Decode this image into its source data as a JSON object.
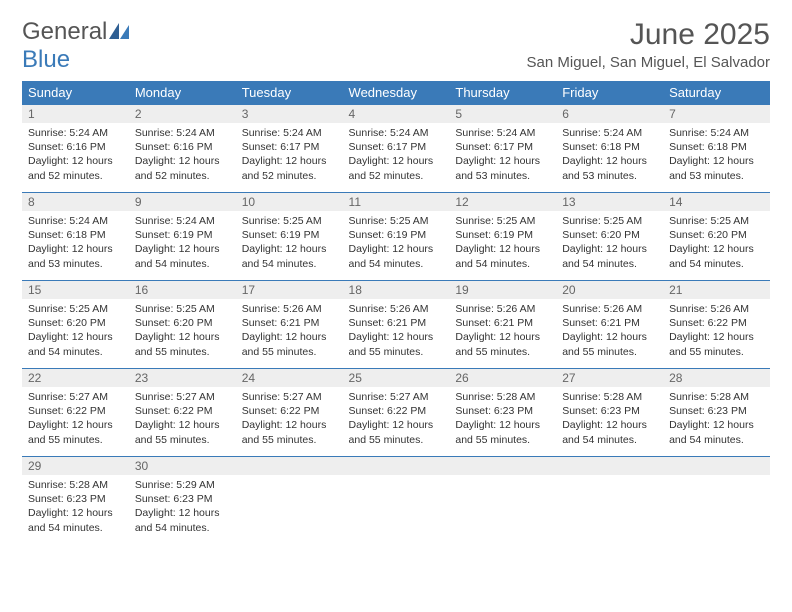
{
  "logo": {
    "general": "General",
    "blue": "Blue"
  },
  "title": "June 2025",
  "location": "San Miguel, San Miguel, El Salvador",
  "colors": {
    "header_bg": "#3a7ab8",
    "header_fg": "#ffffff",
    "daynum_bg": "#eeeeee",
    "daynum_fg": "#666666",
    "row_divider": "#3a7ab8",
    "text": "#333333",
    "logo_gray": "#555555",
    "logo_blue": "#3a7ab8"
  },
  "weekdays": [
    "Sunday",
    "Monday",
    "Tuesday",
    "Wednesday",
    "Thursday",
    "Friday",
    "Saturday"
  ],
  "days": [
    {
      "n": "1",
      "sunrise": "Sunrise: 5:24 AM",
      "sunset": "Sunset: 6:16 PM",
      "daylight": "Daylight: 12 hours and 52 minutes."
    },
    {
      "n": "2",
      "sunrise": "Sunrise: 5:24 AM",
      "sunset": "Sunset: 6:16 PM",
      "daylight": "Daylight: 12 hours and 52 minutes."
    },
    {
      "n": "3",
      "sunrise": "Sunrise: 5:24 AM",
      "sunset": "Sunset: 6:17 PM",
      "daylight": "Daylight: 12 hours and 52 minutes."
    },
    {
      "n": "4",
      "sunrise": "Sunrise: 5:24 AM",
      "sunset": "Sunset: 6:17 PM",
      "daylight": "Daylight: 12 hours and 52 minutes."
    },
    {
      "n": "5",
      "sunrise": "Sunrise: 5:24 AM",
      "sunset": "Sunset: 6:17 PM",
      "daylight": "Daylight: 12 hours and 53 minutes."
    },
    {
      "n": "6",
      "sunrise": "Sunrise: 5:24 AM",
      "sunset": "Sunset: 6:18 PM",
      "daylight": "Daylight: 12 hours and 53 minutes."
    },
    {
      "n": "7",
      "sunrise": "Sunrise: 5:24 AM",
      "sunset": "Sunset: 6:18 PM",
      "daylight": "Daylight: 12 hours and 53 minutes."
    },
    {
      "n": "8",
      "sunrise": "Sunrise: 5:24 AM",
      "sunset": "Sunset: 6:18 PM",
      "daylight": "Daylight: 12 hours and 53 minutes."
    },
    {
      "n": "9",
      "sunrise": "Sunrise: 5:24 AM",
      "sunset": "Sunset: 6:19 PM",
      "daylight": "Daylight: 12 hours and 54 minutes."
    },
    {
      "n": "10",
      "sunrise": "Sunrise: 5:25 AM",
      "sunset": "Sunset: 6:19 PM",
      "daylight": "Daylight: 12 hours and 54 minutes."
    },
    {
      "n": "11",
      "sunrise": "Sunrise: 5:25 AM",
      "sunset": "Sunset: 6:19 PM",
      "daylight": "Daylight: 12 hours and 54 minutes."
    },
    {
      "n": "12",
      "sunrise": "Sunrise: 5:25 AM",
      "sunset": "Sunset: 6:19 PM",
      "daylight": "Daylight: 12 hours and 54 minutes."
    },
    {
      "n": "13",
      "sunrise": "Sunrise: 5:25 AM",
      "sunset": "Sunset: 6:20 PM",
      "daylight": "Daylight: 12 hours and 54 minutes."
    },
    {
      "n": "14",
      "sunrise": "Sunrise: 5:25 AM",
      "sunset": "Sunset: 6:20 PM",
      "daylight": "Daylight: 12 hours and 54 minutes."
    },
    {
      "n": "15",
      "sunrise": "Sunrise: 5:25 AM",
      "sunset": "Sunset: 6:20 PM",
      "daylight": "Daylight: 12 hours and 54 minutes."
    },
    {
      "n": "16",
      "sunrise": "Sunrise: 5:25 AM",
      "sunset": "Sunset: 6:20 PM",
      "daylight": "Daylight: 12 hours and 55 minutes."
    },
    {
      "n": "17",
      "sunrise": "Sunrise: 5:26 AM",
      "sunset": "Sunset: 6:21 PM",
      "daylight": "Daylight: 12 hours and 55 minutes."
    },
    {
      "n": "18",
      "sunrise": "Sunrise: 5:26 AM",
      "sunset": "Sunset: 6:21 PM",
      "daylight": "Daylight: 12 hours and 55 minutes."
    },
    {
      "n": "19",
      "sunrise": "Sunrise: 5:26 AM",
      "sunset": "Sunset: 6:21 PM",
      "daylight": "Daylight: 12 hours and 55 minutes."
    },
    {
      "n": "20",
      "sunrise": "Sunrise: 5:26 AM",
      "sunset": "Sunset: 6:21 PM",
      "daylight": "Daylight: 12 hours and 55 minutes."
    },
    {
      "n": "21",
      "sunrise": "Sunrise: 5:26 AM",
      "sunset": "Sunset: 6:22 PM",
      "daylight": "Daylight: 12 hours and 55 minutes."
    },
    {
      "n": "22",
      "sunrise": "Sunrise: 5:27 AM",
      "sunset": "Sunset: 6:22 PM",
      "daylight": "Daylight: 12 hours and 55 minutes."
    },
    {
      "n": "23",
      "sunrise": "Sunrise: 5:27 AM",
      "sunset": "Sunset: 6:22 PM",
      "daylight": "Daylight: 12 hours and 55 minutes."
    },
    {
      "n": "24",
      "sunrise": "Sunrise: 5:27 AM",
      "sunset": "Sunset: 6:22 PM",
      "daylight": "Daylight: 12 hours and 55 minutes."
    },
    {
      "n": "25",
      "sunrise": "Sunrise: 5:27 AM",
      "sunset": "Sunset: 6:22 PM",
      "daylight": "Daylight: 12 hours and 55 minutes."
    },
    {
      "n": "26",
      "sunrise": "Sunrise: 5:28 AM",
      "sunset": "Sunset: 6:23 PM",
      "daylight": "Daylight: 12 hours and 55 minutes."
    },
    {
      "n": "27",
      "sunrise": "Sunrise: 5:28 AM",
      "sunset": "Sunset: 6:23 PM",
      "daylight": "Daylight: 12 hours and 54 minutes."
    },
    {
      "n": "28",
      "sunrise": "Sunrise: 5:28 AM",
      "sunset": "Sunset: 6:23 PM",
      "daylight": "Daylight: 12 hours and 54 minutes."
    },
    {
      "n": "29",
      "sunrise": "Sunrise: 5:28 AM",
      "sunset": "Sunset: 6:23 PM",
      "daylight": "Daylight: 12 hours and 54 minutes."
    },
    {
      "n": "30",
      "sunrise": "Sunrise: 5:29 AM",
      "sunset": "Sunset: 6:23 PM",
      "daylight": "Daylight: 12 hours and 54 minutes."
    }
  ]
}
